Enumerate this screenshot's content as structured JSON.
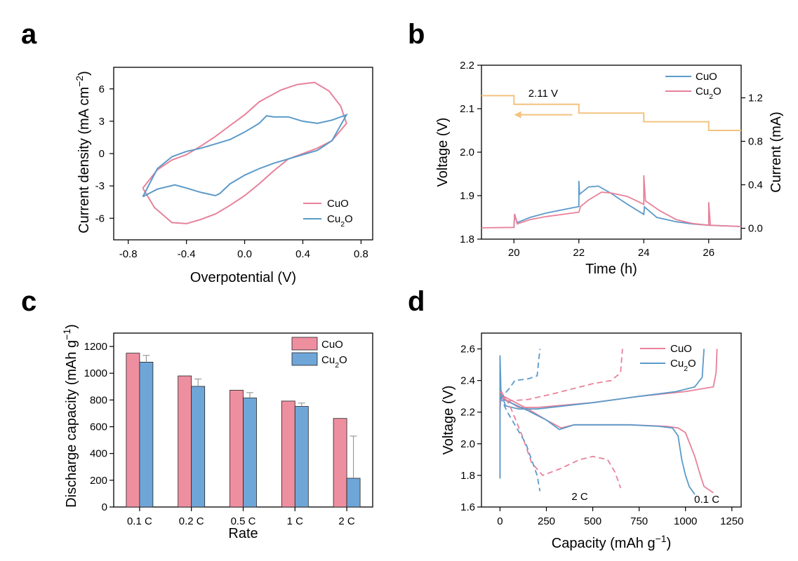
{
  "colors": {
    "cuo": "#e8819a",
    "cu2o": "#5b9ac9",
    "current": "#f3c37e",
    "bar_cuo": "#ee8fa0",
    "bar_cu2o": "#6fa6d8"
  },
  "chart_data": [
    {
      "panel": "a",
      "type": "line",
      "xlabel": "Overpotential (V)",
      "ylabel_main": "Current density  (mA cm",
      "ylabel_sup": "−2",
      "ylabel_end": ")",
      "xlim": [
        -0.9,
        0.88
      ],
      "ylim": [
        -8,
        8
      ],
      "xticks": [
        -0.8,
        -0.4,
        0.0,
        0.4,
        0.8
      ],
      "xtick_labels": [
        "-0.8",
        "-0.4",
        "0.0",
        "0.4",
        "0.8"
      ],
      "yticks": [
        -6,
        -3,
        0,
        3,
        6
      ],
      "ytick_labels": [
        "-6",
        "-3",
        "0",
        "3",
        "6"
      ],
      "legend": "bottom-right",
      "series": [
        {
          "name": "CuO",
          "legend_base": "CuO",
          "legend_sub": "",
          "color": "#e8819a",
          "points": [
            [
              -0.7,
              -3.2
            ],
            [
              -0.62,
              -5.0
            ],
            [
              -0.5,
              -6.4
            ],
            [
              -0.4,
              -6.5
            ],
            [
              -0.3,
              -6.1
            ],
            [
              -0.2,
              -5.6
            ],
            [
              -0.1,
              -4.8
            ],
            [
              0.0,
              -3.9
            ],
            [
              0.1,
              -2.8
            ],
            [
              0.2,
              -1.6
            ],
            [
              0.3,
              -0.5
            ],
            [
              0.4,
              0.0
            ],
            [
              0.5,
              0.5
            ],
            [
              0.6,
              1.2
            ],
            [
              0.7,
              2.8
            ],
            [
              0.66,
              4.4
            ],
            [
              0.58,
              5.8
            ],
            [
              0.48,
              6.6
            ],
            [
              0.36,
              6.4
            ],
            [
              0.25,
              5.9
            ],
            [
              0.1,
              4.8
            ],
            [
              0.0,
              3.6
            ],
            [
              -0.1,
              2.6
            ],
            [
              -0.2,
              1.6
            ],
            [
              -0.3,
              0.7
            ],
            [
              -0.4,
              -0.1
            ],
            [
              -0.5,
              -0.6
            ],
            [
              -0.6,
              -1.5
            ],
            [
              -0.7,
              -3.2
            ]
          ]
        },
        {
          "name": "Cu₂O",
          "legend_base": "Cu",
          "legend_sub": "2",
          "legend_tail": "O",
          "color": "#5b9ac9",
          "points": [
            [
              -0.7,
              -4.0
            ],
            [
              -0.6,
              -3.3
            ],
            [
              -0.48,
              -2.9
            ],
            [
              -0.4,
              -3.2
            ],
            [
              -0.3,
              -3.6
            ],
            [
              -0.2,
              -3.9
            ],
            [
              -0.17,
              -3.7
            ],
            [
              -0.1,
              -2.8
            ],
            [
              0.0,
              -2.0
            ],
            [
              0.1,
              -1.4
            ],
            [
              0.2,
              -0.9
            ],
            [
              0.3,
              -0.5
            ],
            [
              0.4,
              -0.1
            ],
            [
              0.5,
              0.3
            ],
            [
              0.6,
              1.2
            ],
            [
              0.7,
              3.6
            ],
            [
              0.6,
              3.1
            ],
            [
              0.5,
              2.8
            ],
            [
              0.4,
              3.0
            ],
            [
              0.3,
              3.4
            ],
            [
              0.2,
              3.4
            ],
            [
              0.15,
              3.5
            ],
            [
              0.1,
              2.8
            ],
            [
              0.0,
              2.0
            ],
            [
              -0.1,
              1.3
            ],
            [
              -0.2,
              0.9
            ],
            [
              -0.3,
              0.5
            ],
            [
              -0.4,
              0.2
            ],
            [
              -0.5,
              -0.3
            ],
            [
              -0.6,
              -1.4
            ],
            [
              -0.7,
              -4.0
            ]
          ]
        }
      ]
    },
    {
      "panel": "b",
      "type": "line",
      "xlabel": "Time (h)",
      "ylabel": "Voltage (V)",
      "ylabel_right": "Current (mA)",
      "xlim": [
        19,
        27
      ],
      "ylim": [
        1.8,
        2.2
      ],
      "ylim_right": [
        -0.1,
        1.5
      ],
      "xticks": [
        20,
        22,
        24,
        26
      ],
      "xtick_labels": [
        "20",
        "22",
        "24",
        "26"
      ],
      "yticks": [
        1.8,
        1.9,
        2.0,
        2.1,
        2.2
      ],
      "ytick_labels": [
        "1.8",
        "1.9",
        "2.0",
        "2.1",
        "2.2"
      ],
      "yticks_right": [
        0.0,
        0.4,
        0.8,
        1.2
      ],
      "ytick_labels_right": [
        "0.0",
        "0.4",
        "0.8",
        "1.2"
      ],
      "annotation": "2.11 V",
      "legend": "top-right",
      "current_series": {
        "color": "#f3c37e",
        "steps": [
          [
            19,
            2.13
          ],
          [
            20,
            2.13
          ],
          [
            20,
            2.11
          ],
          [
            22,
            2.11
          ],
          [
            22,
            2.09
          ],
          [
            24,
            2.09
          ],
          [
            24,
            2.07
          ],
          [
            26,
            2.07
          ],
          [
            26,
            2.05
          ],
          [
            27,
            2.05
          ]
        ]
      },
      "series": [
        {
          "name": "CuO",
          "color": "#5b9ac9",
          "points": [
            [
              20.0,
              1.826
            ],
            [
              20.02,
              1.857
            ],
            [
              20.1,
              1.838
            ],
            [
              20.5,
              1.85
            ],
            [
              21.0,
              1.86
            ],
            [
              22.0,
              1.875
            ],
            [
              22.0,
              1.934
            ],
            [
              22.02,
              1.903
            ],
            [
              22.3,
              1.92
            ],
            [
              22.6,
              1.922
            ],
            [
              23.0,
              1.905
            ],
            [
              23.5,
              1.88
            ],
            [
              24.0,
              1.857
            ],
            [
              24.02,
              1.874
            ],
            [
              24.4,
              1.85
            ],
            [
              25.0,
              1.84
            ],
            [
              25.5,
              1.835
            ],
            [
              26.0,
              1.832
            ],
            [
              27.0,
              1.829
            ]
          ]
        },
        {
          "name": "Cu₂O",
          "color": "#e8819a",
          "points": [
            [
              19.0,
              1.826
            ],
            [
              20.0,
              1.827
            ],
            [
              20.02,
              1.858
            ],
            [
              20.1,
              1.835
            ],
            [
              20.5,
              1.845
            ],
            [
              21.0,
              1.852
            ],
            [
              22.0,
              1.862
            ],
            [
              22.05,
              1.875
            ],
            [
              22.3,
              1.89
            ],
            [
              22.7,
              1.908
            ],
            [
              23.0,
              1.906
            ],
            [
              23.5,
              1.898
            ],
            [
              24.0,
              1.88
            ],
            [
              24.0,
              1.947
            ],
            [
              24.05,
              1.888
            ],
            [
              24.5,
              1.865
            ],
            [
              25.0,
              1.845
            ],
            [
              25.5,
              1.836
            ],
            [
              26.0,
              1.832
            ],
            [
              26.0,
              1.885
            ],
            [
              26.05,
              1.832
            ],
            [
              27.0,
              1.829
            ]
          ]
        }
      ]
    },
    {
      "panel": "c",
      "type": "bar",
      "xlabel": "Rate",
      "ylabel_main": "Discharge capacity (mAh g",
      "ylabel_sup": "−1",
      "ylabel_end": ")",
      "categories": [
        "0.1 C",
        "0.2 C",
        "0.5 C",
        "1 C",
        "2 C"
      ],
      "ylim": [
        0,
        1300
      ],
      "yticks": [
        0,
        200,
        400,
        600,
        800,
        1000,
        1200
      ],
      "ytick_labels": [
        "0",
        "200",
        "400",
        "600",
        "800",
        "1000",
        "1200"
      ],
      "legend": "top-right",
      "series": [
        {
          "name": "CuO",
          "color": "#ee8fa0",
          "values": [
            1150,
            980,
            873,
            792,
            662
          ],
          "errors": [
            0,
            0,
            0,
            0,
            0
          ]
        },
        {
          "name": "Cu₂O",
          "color": "#6fa6d8",
          "values": [
            1083,
            902,
            815,
            752,
            215
          ],
          "errors": [
            50,
            55,
            40,
            25,
            315
          ]
        }
      ]
    },
    {
      "panel": "d",
      "type": "line",
      "xlabel_main": "Capacity (mAh g",
      "xlabel_sup": "−1",
      "xlabel_end": ")",
      "ylabel": "Voltage (V)",
      "xlim": [
        -100,
        1300
      ],
      "ylim": [
        1.6,
        2.7
      ],
      "xticks": [
        0,
        250,
        500,
        750,
        1000,
        1250
      ],
      "xtick_labels": [
        "0",
        "250",
        "500",
        "750",
        "1000",
        "1250"
      ],
      "yticks": [
        1.6,
        1.8,
        2.0,
        2.2,
        2.4,
        2.6
      ],
      "ytick_labels": [
        "1.6",
        "1.8",
        "2.0",
        "2.2",
        "2.4",
        "2.6"
      ],
      "annotations": [
        "2 C",
        "0.1 C"
      ],
      "legend": "top-right",
      "series": [
        {
          "name": "CuO",
          "style": "solid",
          "color": "#e8819a",
          "points": [
            [
              0,
              1.78
            ],
            [
              0,
              2.2
            ],
            [
              5,
              2.33
            ],
            [
              30,
              2.28
            ],
            [
              100,
              2.23
            ],
            [
              200,
              2.23
            ],
            [
              500,
              2.26
            ],
            [
              750,
              2.3
            ],
            [
              1000,
              2.33
            ],
            [
              1150,
              2.36
            ],
            [
              1165,
              2.45
            ],
            [
              1170,
              2.6
            ]
          ]
        },
        {
          "name": "CuO",
          "style": "solid",
          "color": "#e8819a",
          "points": [
            [
              0,
              2.35
            ],
            [
              20,
              2.3
            ],
            [
              150,
              2.22
            ],
            [
              250,
              2.15
            ],
            [
              330,
              2.1
            ],
            [
              400,
              2.12
            ],
            [
              700,
              2.12
            ],
            [
              900,
              2.11
            ],
            [
              960,
              2.1
            ],
            [
              1000,
              2.07
            ],
            [
              1050,
              1.92
            ],
            [
              1080,
              1.8
            ],
            [
              1100,
              1.73
            ],
            [
              1150,
              1.69
            ]
          ]
        },
        {
          "name": "Cu₂O",
          "style": "solid",
          "color": "#5b9ac9",
          "points": [
            [
              0,
              1.78
            ],
            [
              0,
              2.56
            ],
            [
              5,
              2.32
            ],
            [
              30,
              2.24
            ],
            [
              100,
              2.22
            ],
            [
              200,
              2.22
            ],
            [
              500,
              2.26
            ],
            [
              750,
              2.3
            ],
            [
              950,
              2.33
            ],
            [
              1050,
              2.36
            ],
            [
              1090,
              2.42
            ],
            [
              1100,
              2.6
            ]
          ]
        },
        {
          "name": "Cu₂O",
          "style": "solid",
          "color": "#5b9ac9",
          "points": [
            [
              0,
              2.34
            ],
            [
              20,
              2.28
            ],
            [
              150,
              2.21
            ],
            [
              250,
              2.15
            ],
            [
              320,
              2.09
            ],
            [
              400,
              2.12
            ],
            [
              700,
              2.12
            ],
            [
              860,
              2.11
            ],
            [
              930,
              2.1
            ],
            [
              960,
              2.05
            ],
            [
              980,
              1.9
            ],
            [
              1000,
              1.8
            ],
            [
              1020,
              1.73
            ],
            [
              1050,
              1.68
            ]
          ]
        },
        {
          "name": "CuO",
          "style": "dashed",
          "color": "#e8819a",
          "points": [
            [
              0,
              2.3
            ],
            [
              40,
              2.27
            ],
            [
              150,
              2.28
            ],
            [
              300,
              2.32
            ],
            [
              500,
              2.38
            ],
            [
              600,
              2.4
            ],
            [
              650,
              2.45
            ],
            [
              660,
              2.6
            ]
          ]
        },
        {
          "name": "CuO",
          "style": "dashed",
          "color": "#e8819a",
          "points": [
            [
              0,
              2.33
            ],
            [
              50,
              2.25
            ],
            [
              120,
              2.05
            ],
            [
              170,
              1.88
            ],
            [
              230,
              1.8
            ],
            [
              320,
              1.84
            ],
            [
              430,
              1.9
            ],
            [
              500,
              1.92
            ],
            [
              580,
              1.9
            ],
            [
              620,
              1.82
            ],
            [
              650,
              1.72
            ]
          ]
        },
        {
          "name": "Cu₂O",
          "style": "dashed",
          "color": "#5b9ac9",
          "points": [
            [
              0,
              2.28
            ],
            [
              50,
              2.35
            ],
            [
              80,
              2.4
            ],
            [
              150,
              2.41
            ],
            [
              200,
              2.43
            ],
            [
              215,
              2.6
            ]
          ]
        },
        {
          "name": "Cu₂O",
          "style": "dashed",
          "color": "#5b9ac9",
          "points": [
            [
              0,
              2.3
            ],
            [
              40,
              2.2
            ],
            [
              90,
              2.1
            ],
            [
              140,
              2.0
            ],
            [
              170,
              1.9
            ],
            [
              200,
              1.8
            ],
            [
              215,
              1.7
            ]
          ]
        }
      ]
    }
  ]
}
